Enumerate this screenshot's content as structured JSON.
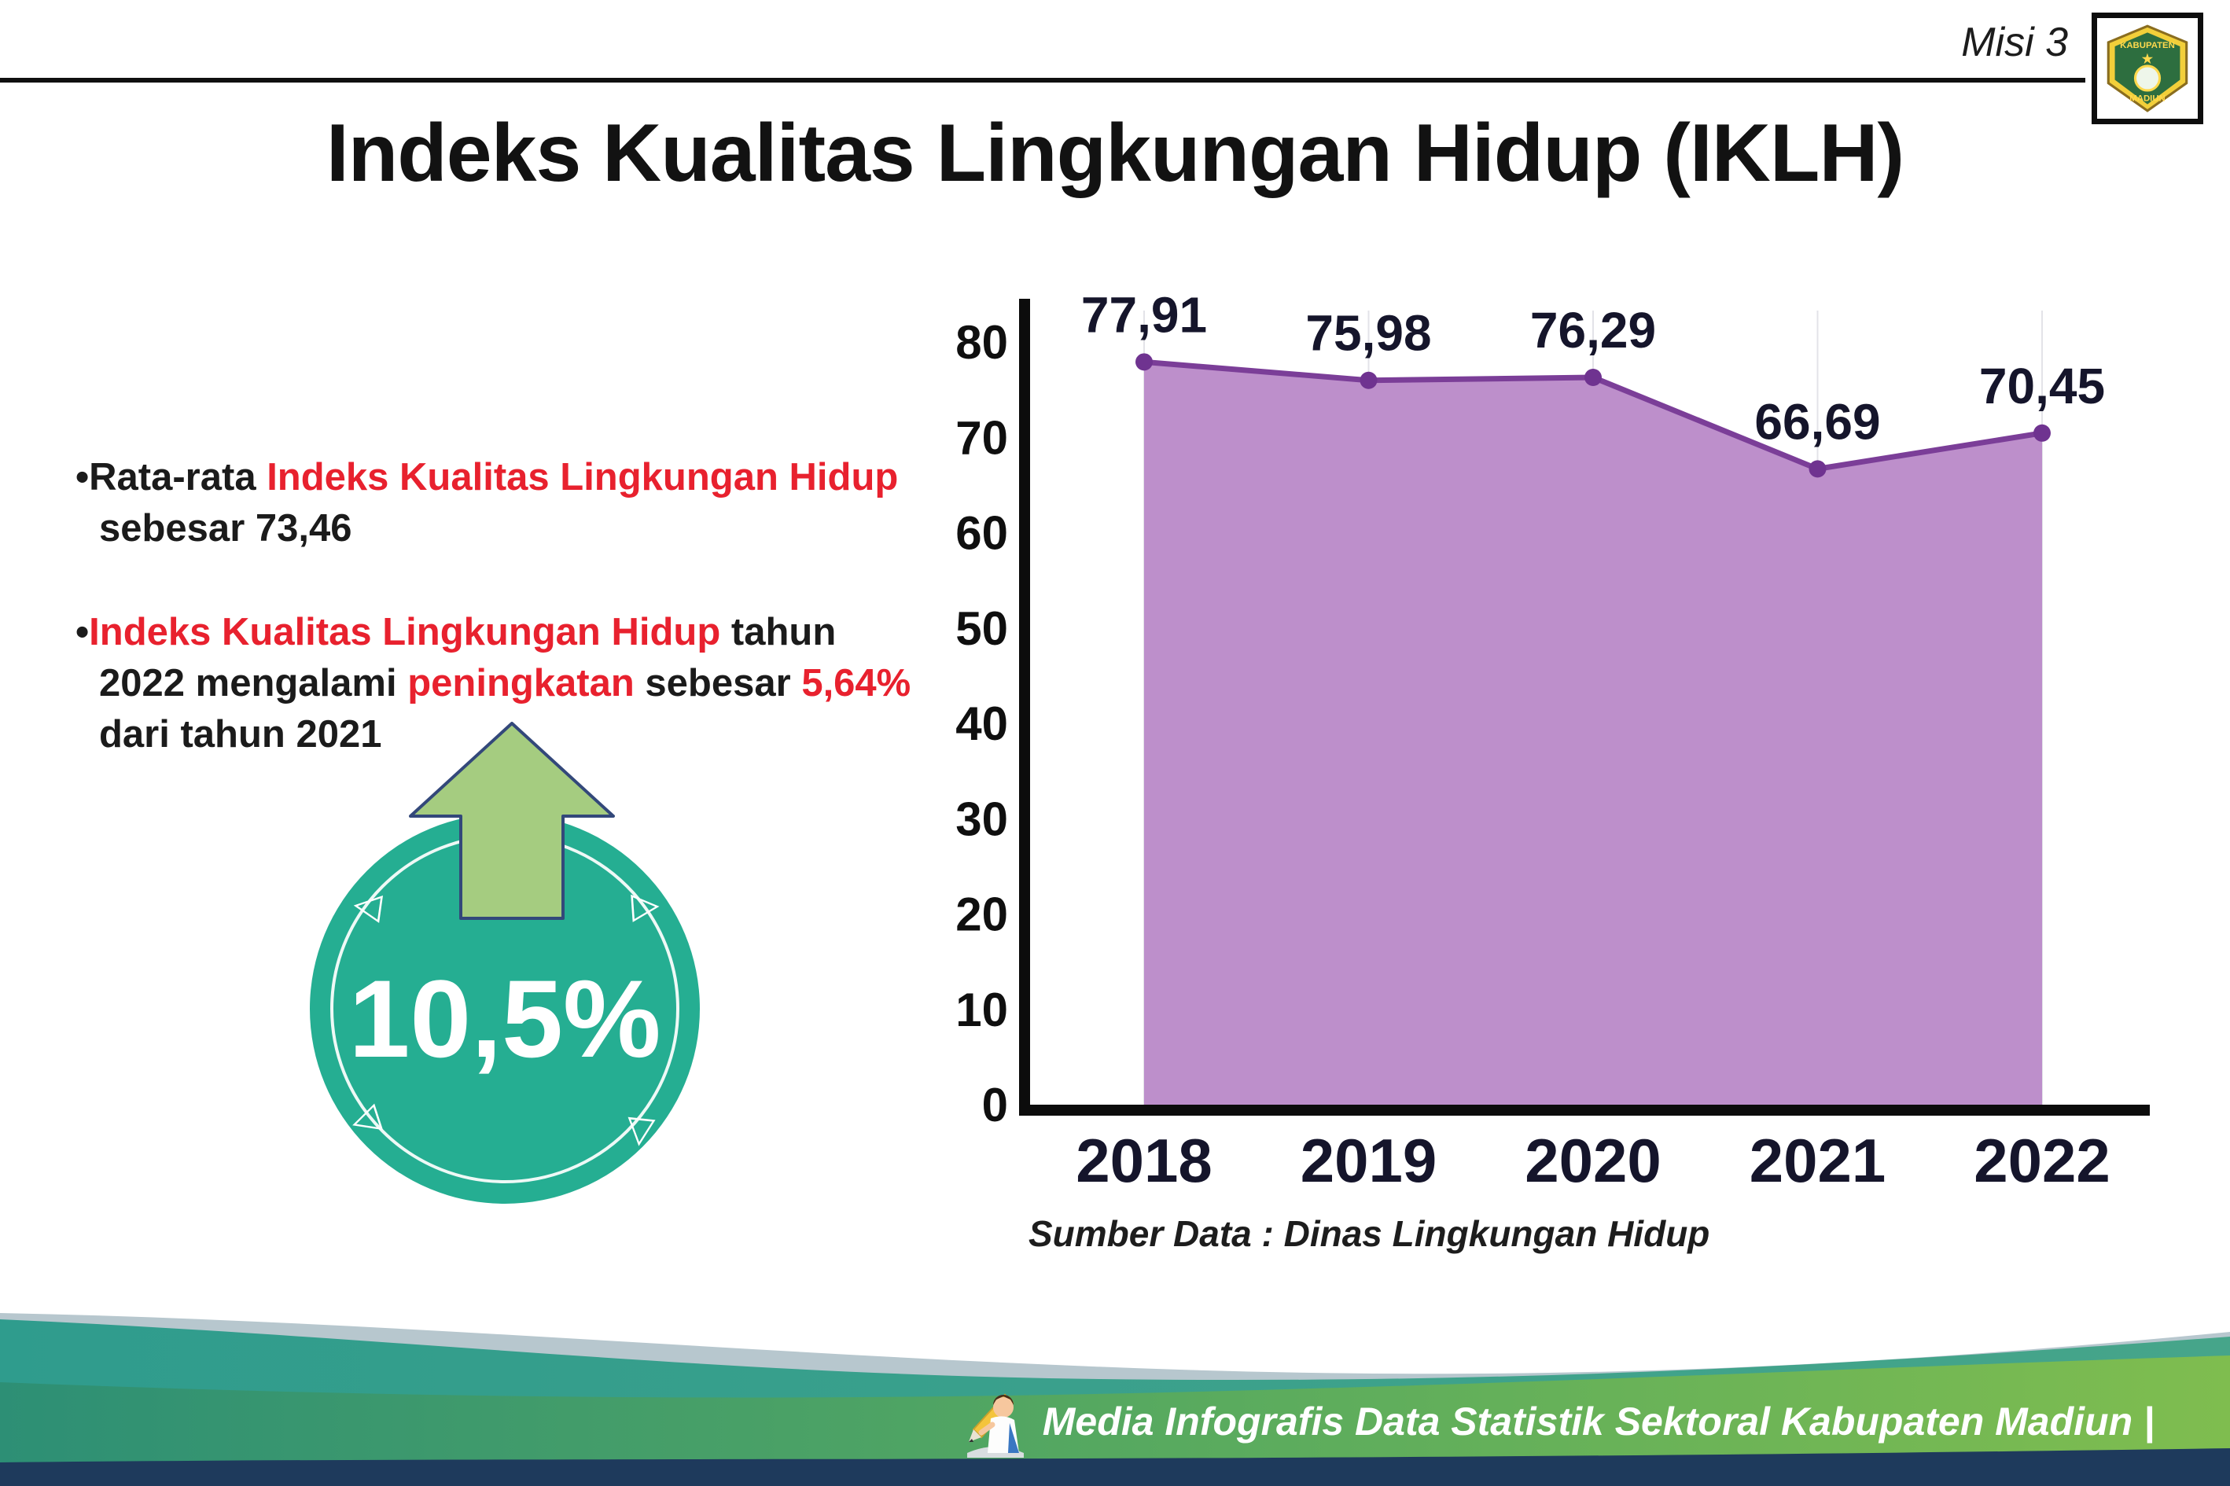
{
  "header": {
    "misi": "Misi 3",
    "title": "Indeks Kualitas Lingkungan Hidup (IKLH)",
    "logo_line1": "KABUPATEN",
    "logo_line2": "MADIUN"
  },
  "bullets": {
    "b1": {
      "bullet": "•",
      "seg1": "Rata-rata ",
      "seg2": "Indeks Kualitas Lingkungan Hidup",
      "seg3": " sebesar 73,46"
    },
    "b2": {
      "bullet": "•",
      "seg1": "Indeks Kualitas Lingkungan Hidup",
      "seg2": " tahun 2022 mengalami ",
      "seg3": "peningkatan",
      "seg4": " sebesar ",
      "seg5": "5,64%",
      "seg6": " dari tahun 2021"
    }
  },
  "badge": {
    "value": "10,5%"
  },
  "chart_data": {
    "type": "area",
    "title": "Indeks Kualitas Lingkungan Hidup (IKLH)",
    "categories": [
      "2018",
      "2019",
      "2020",
      "2021",
      "2022"
    ],
    "values": [
      77.91,
      75.98,
      76.29,
      66.69,
      70.45
    ],
    "value_labels": [
      "77,91",
      "75,98",
      "76,29",
      "66,69",
      "70,45"
    ],
    "ylim": [
      0,
      80
    ],
    "yticks": [
      0,
      10,
      20,
      30,
      40,
      50,
      60,
      70,
      80
    ],
    "xlabel": "",
    "ylabel": "",
    "legend": "none",
    "grid": "faint vertical gridlines at each year",
    "source": "Sumber Data : Dinas Lingkungan Hidup",
    "colors": {
      "area": "#bd8fcb",
      "line": "#7b3e98",
      "point": "#6f3390",
      "axis": "#0c0c0c"
    }
  },
  "footer": {
    "credit": "Media Infografis Data Statistik Sektoral Kabupaten Madiun |"
  }
}
